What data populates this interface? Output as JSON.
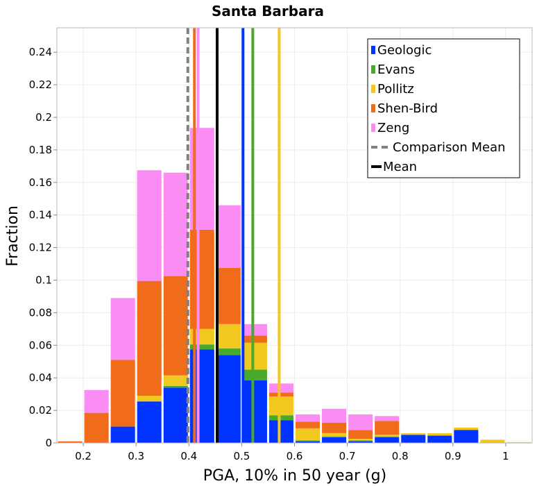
{
  "chart_data": {
    "type": "bar",
    "stacked": true,
    "title": "Santa Barbara",
    "xlabel": "PGA, 10% in 50 year (g)",
    "ylabel": "Fraction",
    "xlim": [
      0.15,
      1.05
    ],
    "ylim": [
      0,
      0.255
    ],
    "bin_width": 0.05,
    "x_ticks": [
      {
        "value": 0.2,
        "label": "0.2"
      },
      {
        "value": 0.3,
        "label": "0.3"
      },
      {
        "value": 0.4,
        "label": "0.4"
      },
      {
        "value": 0.5,
        "label": "0.5"
      },
      {
        "value": 0.6,
        "label": "0.6"
      },
      {
        "value": 0.7,
        "label": "0.7"
      },
      {
        "value": 0.8,
        "label": "0.8"
      },
      {
        "value": 0.9,
        "label": "0.9"
      },
      {
        "value": 1.0,
        "label": "1"
      }
    ],
    "y_ticks": [
      {
        "value": 0,
        "label": "0"
      },
      {
        "value": 0.02,
        "label": "0.02"
      },
      {
        "value": 0.04,
        "label": "0.04"
      },
      {
        "value": 0.06,
        "label": "0.06"
      },
      {
        "value": 0.08,
        "label": "0.08"
      },
      {
        "value": 0.1,
        "label": "0.1"
      },
      {
        "value": 0.12,
        "label": "0.12"
      },
      {
        "value": 0.14,
        "label": "0.14"
      },
      {
        "value": 0.16,
        "label": "0.16"
      },
      {
        "value": 0.18,
        "label": "0.18"
      },
      {
        "value": 0.2,
        "label": "0.2"
      },
      {
        "value": 0.22,
        "label": "0.22"
      },
      {
        "value": 0.24,
        "label": "0.24"
      }
    ],
    "grid": true,
    "legend_position": "top-right",
    "bin_centers": [
      0.175,
      0.225,
      0.275,
      0.325,
      0.375,
      0.425,
      0.475,
      0.525,
      0.575,
      0.625,
      0.675,
      0.725,
      0.775,
      0.825,
      0.875,
      0.925,
      0.975,
      1.025
    ],
    "series": [
      {
        "name": "Geologic",
        "color": "#0033ff",
        "values": [
          0,
          0,
          0.01,
          0.0255,
          0.034,
          0.0575,
          0.054,
          0.0385,
          0.014,
          0.001,
          0.0035,
          0.001,
          0.0035,
          0.005,
          0.0045,
          0.008,
          0,
          0
        ]
      },
      {
        "name": "Evans",
        "color": "#4aa82a",
        "values": [
          0,
          0,
          0,
          0,
          0.001,
          0.003,
          0.004,
          0.0065,
          0.003,
          0.0005,
          0.0005,
          0.0005,
          0.0005,
          0,
          0,
          0,
          0,
          0
        ]
      },
      {
        "name": "Pollitz",
        "color": "#f0c820",
        "values": [
          0,
          0,
          0,
          0.0035,
          0.0065,
          0.0095,
          0.015,
          0.0165,
          0.0115,
          0.0075,
          0.002,
          0.001,
          0.001,
          0.001,
          0.0015,
          0.0015,
          0.002,
          0.0005
        ]
      },
      {
        "name": "Shen-Bird",
        "color": "#f06c1a",
        "values": [
          0.001,
          0.0185,
          0.041,
          0.0705,
          0.061,
          0.061,
          0.0345,
          0.0045,
          0.0025,
          0.004,
          0.0065,
          0.0055,
          0.0085,
          0,
          0,
          0,
          0,
          0
        ]
      },
      {
        "name": "Zeng",
        "color": "#fa8cf4",
        "values": [
          0,
          0.014,
          0.038,
          0.068,
          0.0635,
          0.0625,
          0.0385,
          0.007,
          0.0055,
          0.0045,
          0.0085,
          0.0095,
          0.003,
          0,
          0,
          0,
          0,
          0
        ]
      }
    ],
    "mean_lines": [
      {
        "name": "Geologic",
        "x": 0.5025,
        "color": "#0033ff"
      },
      {
        "name": "Evans",
        "x": 0.521,
        "color": "#4aa82a"
      },
      {
        "name": "Pollitz",
        "x": 0.571,
        "color": "#f0c820"
      },
      {
        "name": "Shen-Bird",
        "x": 0.4105,
        "color": "#f06c1a"
      },
      {
        "name": "Zeng",
        "x": 0.4175,
        "color": "#fa8cf4"
      }
    ],
    "mean": {
      "name": "Mean",
      "x": 0.4535,
      "color": "#000000"
    },
    "comparison_mean": {
      "name": "Comparison Mean",
      "x": 0.398,
      "color": "#808080"
    },
    "legend": [
      {
        "label": "Geologic",
        "color": "#0033ff",
        "style": "patch"
      },
      {
        "label": "Evans",
        "color": "#4aa82a",
        "style": "patch"
      },
      {
        "label": "Pollitz",
        "color": "#f0c820",
        "style": "patch"
      },
      {
        "label": "Shen-Bird",
        "color": "#f06c1a",
        "style": "patch"
      },
      {
        "label": "Zeng",
        "color": "#fa8cf4",
        "style": "patch"
      },
      {
        "label": "Comparison Mean",
        "color": "#808080",
        "style": "dashed"
      },
      {
        "label": "Mean",
        "color": "#000000",
        "style": "solid"
      }
    ]
  }
}
